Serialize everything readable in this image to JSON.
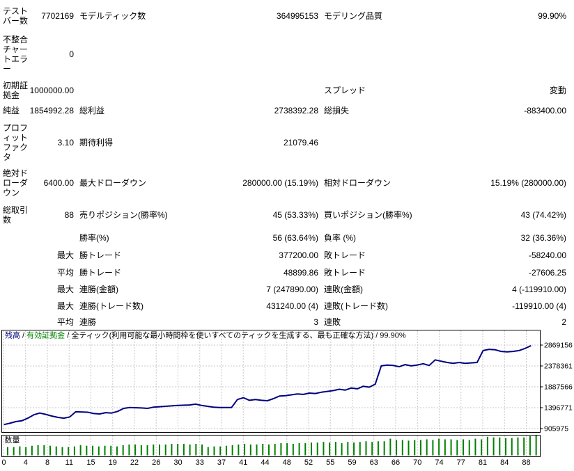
{
  "report": {
    "rows": [
      {
        "label": "テストバー数",
        "value": "7702169",
        "label2": "モデルティック数",
        "value2": "364995153",
        "label3": "モデリング品質",
        "value3": "99.90%"
      },
      {
        "label": "不整合チャートエラー",
        "value": "0",
        "label2": "",
        "value2": "",
        "label3": "",
        "value3": ""
      },
      {
        "label": "初期証拠金",
        "value": "1000000.00",
        "label2": "",
        "value2": "",
        "label3": "スプレッド",
        "value3": "変動"
      },
      {
        "label": "純益",
        "value": "1854992.28",
        "label2": "総利益",
        "value2": "2738392.28",
        "label3": "総損失",
        "value3": "-883400.00"
      },
      {
        "label": "プロフィットファクタ",
        "value": "3.10",
        "label2": "期待利得",
        "value2": "21079.46",
        "label3": "",
        "value3": ""
      },
      {
        "label": "絶対ドローダウン",
        "value": "6400.00",
        "label2": "最大ドローダウン",
        "value2": "280000.00 (15.19%)",
        "label3": "相対ドローダウン",
        "value3": "15.19% (280000.00)"
      },
      {
        "label": "総取引数",
        "value": "88",
        "label2": "売りポジション(勝率%)",
        "value2": "45 (53.33%)",
        "label3": "買いポジション(勝率%)",
        "value3": "43 (74.42%)"
      },
      {
        "label": "",
        "value": "",
        "label2": "勝率(%)",
        "value2": "56 (63.64%)",
        "label3": "負率 (%)",
        "value3": "32 (36.36%)"
      },
      {
        "label": "",
        "value": "最大",
        "label2": "勝トレード",
        "value2": "377200.00",
        "label3": "敗トレード",
        "value3": "-58240.00"
      },
      {
        "label": "",
        "value": "平均",
        "label2": "勝トレード",
        "value2": "48899.86",
        "label3": "敗トレード",
        "value3": "-27606.25"
      },
      {
        "label": "",
        "value": "最大",
        "label2": "連勝(金額)",
        "value2": "7 (247890.00)",
        "label3": "連敗(金額)",
        "value3": "4 (-119910.00)"
      },
      {
        "label": "",
        "value": "最大",
        "label2": "連勝(トレード数)",
        "value2": "431240.00 (4)",
        "label3": "連敗(トレード数)",
        "value3": "-119910.00 (4)"
      },
      {
        "label": "",
        "value": "平均",
        "label2": "連勝",
        "value2": "3",
        "label3": "連敗",
        "value3": "2"
      }
    ]
  },
  "chart_data": [
    {
      "type": "line",
      "title": "残高 / 有効証拠金 / 全ティック(利用可能な最小時間枠を使いすべてのティックを生成する、最も正確な方法) / 99.90%",
      "legend_segments": [
        {
          "text": "残高",
          "color": "#000080"
        },
        {
          "text": " / ",
          "color": "#000000"
        },
        {
          "text": "有効証拠金",
          "color": "#008000"
        },
        {
          "text": " / 全ティック(利用可能な最小時間枠を使いすべてのティックを生成する、最も正確な方法) / 99.90%",
          "color": "#000000"
        }
      ],
      "xticks": [
        0,
        4,
        8,
        11,
        15,
        19,
        22,
        26,
        30,
        33,
        37,
        41,
        44,
        48,
        52,
        55,
        59,
        63,
        66,
        70,
        74,
        77,
        81,
        84,
        88
      ],
      "yticks": [
        905975,
        1396771,
        1887566,
        2378361,
        2869156
      ],
      "ylim": [
        807000,
        2955000
      ],
      "xlim": [
        0,
        90
      ],
      "grid": true,
      "legend_position": "top-left-inside",
      "series": [
        {
          "name": "残高",
          "color": "#000080",
          "x": [
            0,
            1,
            2,
            3,
            4,
            5,
            6,
            7,
            8,
            9,
            10,
            11,
            12,
            14,
            15,
            16,
            17,
            18,
            19,
            20,
            21,
            23,
            24,
            25,
            27,
            29,
            31,
            32,
            33,
            34,
            35,
            36,
            38,
            39,
            40,
            41,
            42,
            43,
            44,
            45,
            46,
            47,
            48,
            49,
            50,
            51,
            52,
            53,
            54,
            55,
            56,
            57,
            58,
            59,
            60,
            61,
            62,
            63,
            64,
            65,
            66,
            67,
            68,
            69,
            70,
            71,
            72,
            73,
            74,
            75,
            76,
            77,
            78,
            79,
            80,
            81,
            82,
            83,
            84,
            85,
            86,
            87,
            88
          ],
          "y": [
            1000000,
            1030000,
            1070000,
            1090000,
            1150000,
            1230000,
            1270000,
            1240000,
            1200000,
            1170000,
            1150000,
            1180000,
            1300000,
            1290000,
            1260000,
            1250000,
            1280000,
            1270000,
            1310000,
            1380000,
            1400000,
            1390000,
            1380000,
            1410000,
            1430000,
            1450000,
            1460000,
            1480000,
            1450000,
            1430000,
            1410000,
            1400000,
            1400000,
            1590000,
            1630000,
            1570000,
            1590000,
            1570000,
            1560000,
            1610000,
            1670000,
            1680000,
            1700000,
            1720000,
            1710000,
            1740000,
            1730000,
            1760000,
            1780000,
            1800000,
            1830000,
            1810000,
            1860000,
            1840000,
            1900000,
            1880000,
            1950000,
            2380000,
            2400000,
            2390000,
            2360000,
            2410000,
            2380000,
            2400000,
            2430000,
            2390000,
            2520000,
            2490000,
            2460000,
            2440000,
            2460000,
            2440000,
            2450000,
            2460000,
            2740000,
            2770000,
            2760000,
            2720000,
            2710000,
            2720000,
            2740000,
            2790000,
            2854992
          ]
        }
      ]
    },
    {
      "type": "bar",
      "title": "数量",
      "color": "#008000",
      "values": [
        1.3,
        1.3,
        1.4,
        1.3,
        1.5,
        1.6,
        1.6,
        1.5,
        1.4,
        1.3,
        1.3,
        1.4,
        1.6,
        1.5,
        1.5,
        1.4,
        1.5,
        1.5,
        1.4,
        1.6,
        1.7,
        1.7,
        1.6,
        1.6,
        1.7,
        1.7,
        1.7,
        1.8,
        1.8,
        1.8,
        1.7,
        1.8,
        1.7,
        1.3,
        1.4,
        1.4,
        1.5,
        1.6,
        1.7,
        1.8,
        1.7,
        1.7,
        1.8,
        1.7,
        1.8,
        1.9,
        1.9,
        1.8,
        1.9,
        1.9,
        2.0,
        2.0,
        2.1,
        2.0,
        2.1,
        1.9,
        2.1,
        2.0,
        2.1,
        2.2,
        2.1,
        2.2,
        2.2,
        2.6,
        2.4,
        2.4,
        2.3,
        2.4,
        2.4,
        2.5,
        2.4,
        2.6,
        2.5,
        2.5,
        2.4,
        2.5,
        2.4,
        2.6,
        2.5,
        2.9,
        2.8,
        2.8,
        2.7,
        2.7,
        2.8,
        2.8,
        3.0,
        3.2
      ]
    }
  ],
  "colors": {
    "balance_line": "#000080",
    "equity": "#008000",
    "lots_bar": "#008000",
    "grid": "#c8c8c8",
    "border": "#000000",
    "text": "#000000",
    "background": "#ffffff"
  }
}
